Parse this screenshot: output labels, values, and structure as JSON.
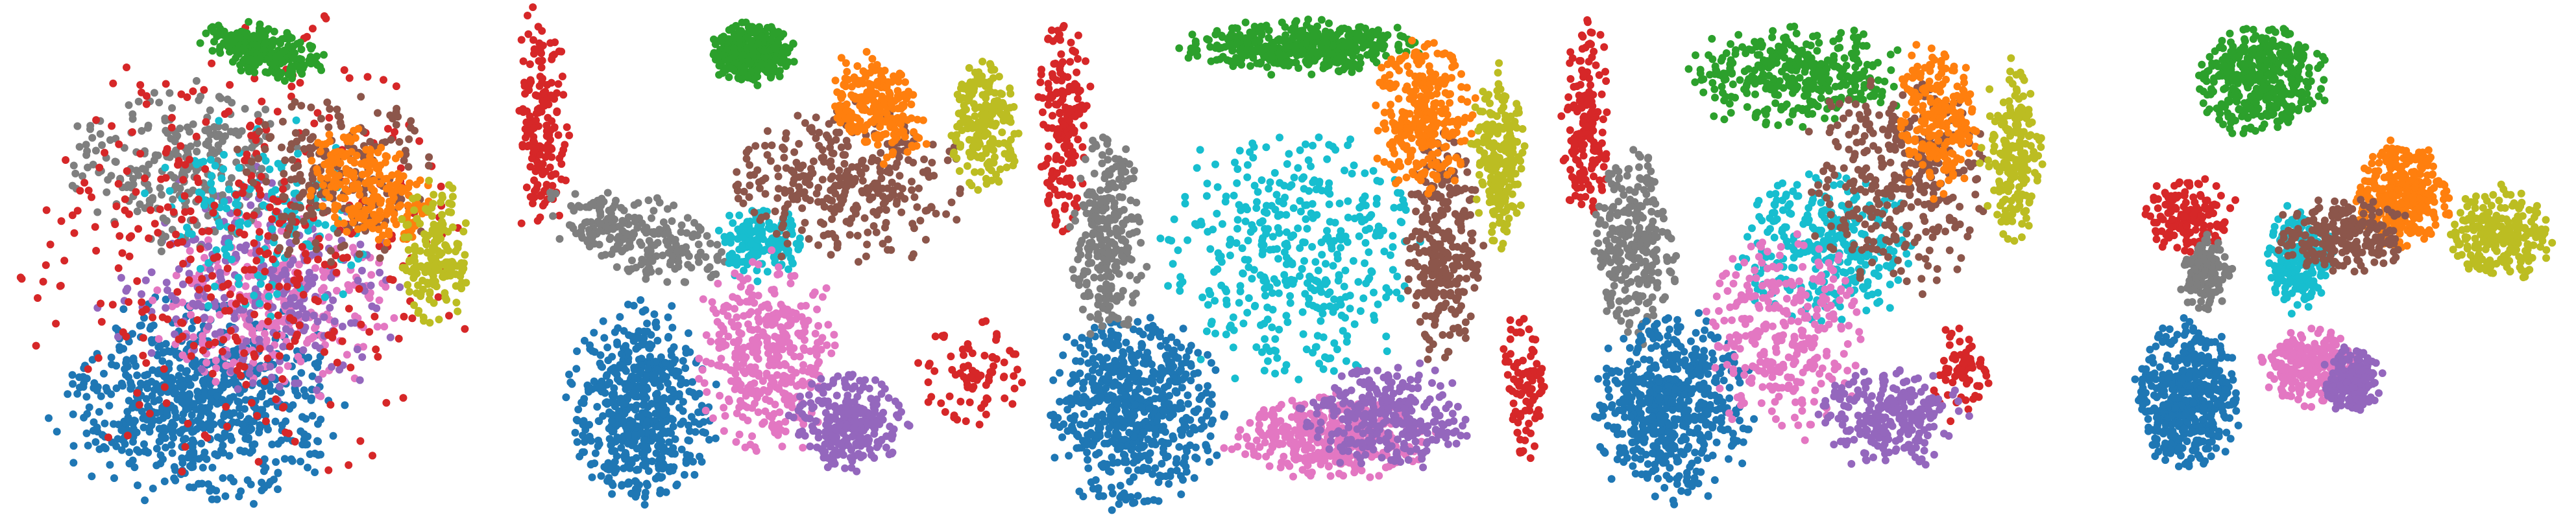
{
  "figure": {
    "title": "",
    "background": "#ffffff"
  },
  "palette": {
    "blue": "#1f77b4",
    "orange": "#ff7f0e",
    "green": "#2ca02c",
    "red": "#d62728",
    "purple": "#9467bd",
    "brown": "#8c564b",
    "pink": "#e377c2",
    "gray": "#7f7f7f",
    "olive": "#bcbd22",
    "cyan": "#17becf"
  },
  "chart_data": [
    {
      "type": "scatter",
      "title": "",
      "xlabel": "",
      "ylabel": "",
      "grid": false,
      "axes_visible": false,
      "legend": "none",
      "xlim": [
        -1,
        1
      ],
      "ylim": [
        -1,
        1
      ],
      "series": [
        {
          "color_key": "blue",
          "cx": -0.22,
          "cy": -0.58,
          "rx": 0.56,
          "ry": 0.4,
          "rot": 0.0,
          "n": 720
        },
        {
          "color_key": "pink",
          "cx": 0.1,
          "cy": -0.18,
          "rx": 0.52,
          "ry": 0.36,
          "rot": 0.0,
          "n": 280
        },
        {
          "color_key": "purple",
          "cx": 0.05,
          "cy": -0.1,
          "rx": 0.62,
          "ry": 0.45,
          "rot": 0.0,
          "n": 260
        },
        {
          "color_key": "gray",
          "cx": -0.28,
          "cy": 0.38,
          "rx": 0.46,
          "ry": 0.32,
          "rot": 0.0,
          "n": 260
        },
        {
          "color_key": "cyan",
          "cx": 0.06,
          "cy": 0.18,
          "rx": 0.46,
          "ry": 0.38,
          "rot": 0.0,
          "n": 160
        },
        {
          "color_key": "red",
          "cx": 0.0,
          "cy": 0.05,
          "rx": 0.9,
          "ry": 0.9,
          "rot": 0.0,
          "n": 380
        },
        {
          "color_key": "brown",
          "cx": 0.38,
          "cy": 0.32,
          "rx": 0.42,
          "ry": 0.36,
          "rot": 0.0,
          "n": 210
        },
        {
          "color_key": "orange",
          "cx": 0.5,
          "cy": 0.28,
          "rx": 0.28,
          "ry": 0.2,
          "rot": -0.6,
          "n": 230
        },
        {
          "color_key": "olive",
          "cx": 0.78,
          "cy": 0.02,
          "rx": 0.14,
          "ry": 0.28,
          "rot": 0.0,
          "n": 170
        },
        {
          "color_key": "green",
          "cx": 0.05,
          "cy": 0.85,
          "rx": 0.26,
          "ry": 0.1,
          "rot": -0.25,
          "n": 240
        }
      ]
    },
    {
      "type": "scatter",
      "title": "",
      "xlabel": "",
      "ylabel": "",
      "grid": false,
      "axes_visible": false,
      "legend": "none",
      "xlim": [
        -1,
        1
      ],
      "ylim": [
        -1,
        1
      ],
      "series": [
        {
          "color_key": "red",
          "cx": -0.92,
          "cy": 0.55,
          "rx": 0.12,
          "ry": 0.42,
          "rot": 0.0,
          "n": 170
        },
        {
          "color_key": "red",
          "cx": 0.78,
          "cy": -0.45,
          "rx": 0.2,
          "ry": 0.22,
          "rot": 0.0,
          "n": 80
        },
        {
          "color_key": "blue",
          "cx": -0.52,
          "cy": -0.58,
          "rx": 0.28,
          "ry": 0.38,
          "rot": 0.0,
          "n": 540
        },
        {
          "color_key": "gray",
          "cx": -0.55,
          "cy": 0.1,
          "rx": 0.38,
          "ry": 0.15,
          "rot": -0.35,
          "n": 230
        },
        {
          "color_key": "cyan",
          "cx": -0.04,
          "cy": 0.06,
          "rx": 0.16,
          "ry": 0.14,
          "rot": 0.0,
          "n": 160
        },
        {
          "color_key": "pink",
          "cx": -0.02,
          "cy": -0.38,
          "rx": 0.26,
          "ry": 0.38,
          "rot": 0.0,
          "n": 360
        },
        {
          "color_key": "purple",
          "cx": 0.3,
          "cy": -0.65,
          "rx": 0.22,
          "ry": 0.2,
          "rot": 0.0,
          "n": 250
        },
        {
          "color_key": "brown",
          "cx": 0.3,
          "cy": 0.3,
          "rx": 0.45,
          "ry": 0.3,
          "rot": 0.0,
          "n": 330
        },
        {
          "color_key": "green",
          "cx": -0.08,
          "cy": 0.82,
          "rx": 0.16,
          "ry": 0.12,
          "rot": 0.0,
          "n": 320
        },
        {
          "color_key": "orange",
          "cx": 0.42,
          "cy": 0.6,
          "rx": 0.16,
          "ry": 0.22,
          "rot": 0.6,
          "n": 210
        },
        {
          "color_key": "olive",
          "cx": 0.84,
          "cy": 0.52,
          "rx": 0.14,
          "ry": 0.26,
          "rot": 0.0,
          "n": 200
        }
      ]
    },
    {
      "type": "scatter",
      "title": "",
      "xlabel": "",
      "ylabel": "",
      "grid": false,
      "axes_visible": false,
      "legend": "none",
      "xlim": [
        -1,
        1
      ],
      "ylim": [
        -1,
        1
      ],
      "series": [
        {
          "color_key": "cyan",
          "cx": 0.0,
          "cy": 0.0,
          "rx": 0.5,
          "ry": 0.5,
          "rot": 0.0,
          "n": 420
        },
        {
          "color_key": "green",
          "cx": 0.05,
          "cy": 0.84,
          "rx": 0.45,
          "ry": 0.1,
          "rot": 0.0,
          "n": 420
        },
        {
          "color_key": "red",
          "cx": -0.9,
          "cy": 0.55,
          "rx": 0.1,
          "ry": 0.42,
          "rot": 0.0,
          "n": 180
        },
        {
          "color_key": "red",
          "cx": 0.92,
          "cy": -0.5,
          "rx": 0.08,
          "ry": 0.3,
          "rot": 0.0,
          "n": 90
        },
        {
          "color_key": "blue",
          "cx": -0.62,
          "cy": -0.6,
          "rx": 0.32,
          "ry": 0.38,
          "rot": 0.0,
          "n": 620
        },
        {
          "color_key": "gray",
          "cx": -0.72,
          "cy": 0.1,
          "rx": 0.14,
          "ry": 0.4,
          "rot": 0.0,
          "n": 260
        },
        {
          "color_key": "pink",
          "cx": 0.15,
          "cy": -0.7,
          "rx": 0.38,
          "ry": 0.16,
          "rot": 0.0,
          "n": 380
        },
        {
          "color_key": "purple",
          "cx": 0.38,
          "cy": -0.62,
          "rx": 0.32,
          "ry": 0.2,
          "rot": 0.0,
          "n": 300
        },
        {
          "color_key": "brown",
          "cx": 0.6,
          "cy": 0.05,
          "rx": 0.15,
          "ry": 0.45,
          "rot": 0.0,
          "n": 280
        },
        {
          "color_key": "orange",
          "cx": 0.52,
          "cy": 0.55,
          "rx": 0.2,
          "ry": 0.3,
          "rot": 0.0,
          "n": 300
        },
        {
          "color_key": "olive",
          "cx": 0.82,
          "cy": 0.4,
          "rx": 0.1,
          "ry": 0.35,
          "rot": 0.0,
          "n": 230
        }
      ]
    },
    {
      "type": "scatter",
      "title": "",
      "xlabel": "",
      "ylabel": "",
      "grid": false,
      "axes_visible": false,
      "legend": "none",
      "xlim": [
        -1,
        1
      ],
      "ylim": [
        -1,
        1
      ],
      "series": [
        {
          "color_key": "red",
          "cx": -0.88,
          "cy": 0.55,
          "rx": 0.1,
          "ry": 0.4,
          "rot": 0.0,
          "n": 170
        },
        {
          "color_key": "red",
          "cx": 0.6,
          "cy": -0.45,
          "rx": 0.12,
          "ry": 0.2,
          "rot": 0.0,
          "n": 70
        },
        {
          "color_key": "green",
          "cx": -0.05,
          "cy": 0.72,
          "rx": 0.4,
          "ry": 0.2,
          "rot": 0.0,
          "n": 360
        },
        {
          "color_key": "cyan",
          "cx": 0.05,
          "cy": 0.05,
          "rx": 0.35,
          "ry": 0.3,
          "rot": 0.0,
          "n": 300
        },
        {
          "color_key": "gray",
          "cx": -0.7,
          "cy": 0.05,
          "rx": 0.16,
          "ry": 0.35,
          "rot": 0.0,
          "n": 260
        },
        {
          "color_key": "blue",
          "cx": -0.55,
          "cy": -0.58,
          "rx": 0.32,
          "ry": 0.35,
          "rot": 0.0,
          "n": 560
        },
        {
          "color_key": "pink",
          "cx": -0.1,
          "cy": -0.3,
          "rx": 0.3,
          "ry": 0.4,
          "rot": 0.0,
          "n": 300
        },
        {
          "color_key": "purple",
          "cx": 0.32,
          "cy": -0.62,
          "rx": 0.28,
          "ry": 0.2,
          "rot": 0.0,
          "n": 250
        },
        {
          "color_key": "brown",
          "cx": 0.35,
          "cy": 0.3,
          "rx": 0.35,
          "ry": 0.4,
          "rot": 0.0,
          "n": 330
        },
        {
          "color_key": "orange",
          "cx": 0.5,
          "cy": 0.55,
          "rx": 0.15,
          "ry": 0.3,
          "rot": 0.0,
          "n": 210
        },
        {
          "color_key": "olive",
          "cx": 0.8,
          "cy": 0.4,
          "rx": 0.12,
          "ry": 0.35,
          "rot": 0.0,
          "n": 200
        }
      ]
    },
    {
      "type": "scatter",
      "title": "",
      "xlabel": "",
      "ylabel": "",
      "grid": false,
      "axes_visible": false,
      "legend": "none",
      "xlim": [
        -1,
        1
      ],
      "ylim": [
        -1,
        1
      ],
      "series": [
        {
          "color_key": "green",
          "cx": -0.25,
          "cy": 0.72,
          "rx": 0.25,
          "ry": 0.22,
          "rot": 0.0,
          "n": 420
        },
        {
          "color_key": "orange",
          "cx": 0.32,
          "cy": 0.25,
          "rx": 0.18,
          "ry": 0.2,
          "rot": 0.0,
          "n": 340
        },
        {
          "color_key": "olive",
          "cx": 0.72,
          "cy": 0.1,
          "rx": 0.2,
          "ry": 0.18,
          "rot": 0.0,
          "n": 260
        },
        {
          "color_key": "red",
          "cx": -0.55,
          "cy": 0.18,
          "rx": 0.18,
          "ry": 0.16,
          "rot": 0.0,
          "n": 140
        },
        {
          "color_key": "gray",
          "cx": -0.48,
          "cy": -0.05,
          "rx": 0.1,
          "ry": 0.15,
          "rot": 0.0,
          "n": 150
        },
        {
          "color_key": "blue",
          "cx": -0.55,
          "cy": -0.55,
          "rx": 0.2,
          "ry": 0.28,
          "rot": 0.0,
          "n": 480
        },
        {
          "color_key": "cyan",
          "cx": -0.1,
          "cy": 0.0,
          "rx": 0.14,
          "ry": 0.2,
          "rot": 0.0,
          "n": 200
        },
        {
          "color_key": "pink",
          "cx": -0.05,
          "cy": -0.42,
          "rx": 0.18,
          "ry": 0.15,
          "rot": 0.0,
          "n": 260
        },
        {
          "color_key": "purple",
          "cx": 0.12,
          "cy": -0.48,
          "rx": 0.12,
          "ry": 0.12,
          "rot": 0.0,
          "n": 200
        },
        {
          "color_key": "brown",
          "cx": 0.08,
          "cy": 0.1,
          "rx": 0.25,
          "ry": 0.15,
          "rot": 0.0,
          "n": 220
        }
      ]
    }
  ]
}
